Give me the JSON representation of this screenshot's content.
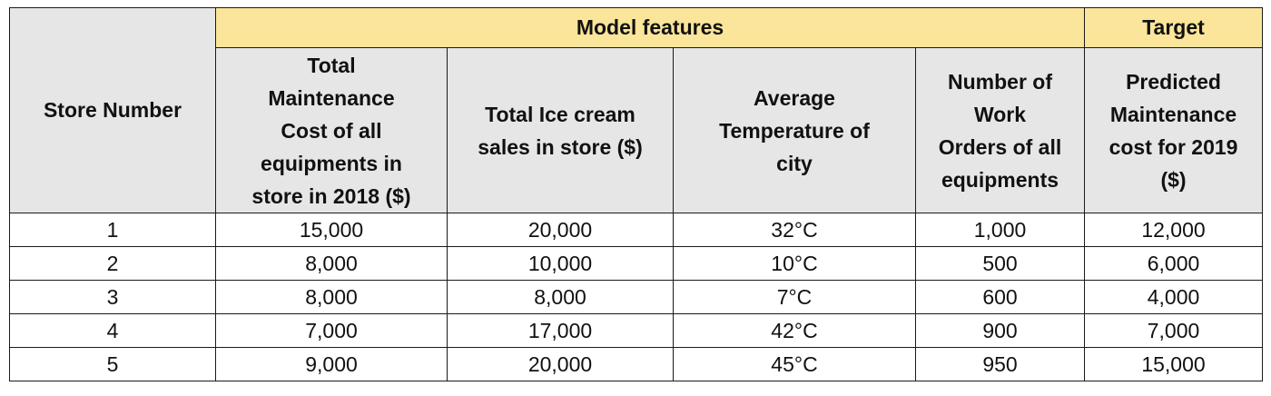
{
  "table": {
    "group_headers": {
      "features": "Model features",
      "target": "Target"
    },
    "store_header": "Store Number",
    "column_headers": [
      [
        "Total",
        "Maintenance",
        "Cost of all",
        "equipments in",
        "store in 2018 ($)"
      ],
      [
        "Total Ice cream",
        "sales in store ($)"
      ],
      [
        "Average",
        "Temperature of",
        "city"
      ],
      [
        "Number of",
        "Work",
        "Orders of all",
        "equipments"
      ],
      [
        "Predicted",
        "Maintenance",
        "cost for 2019",
        "($)"
      ]
    ],
    "rows": [
      [
        "1",
        "15,000",
        "20,000",
        "32°C",
        "1,000",
        "12,000"
      ],
      [
        "2",
        "8,000",
        "10,000",
        "10°C",
        "500",
        "6,000"
      ],
      [
        "3",
        "8,000",
        "8,000",
        "7°C",
        "600",
        "4,000"
      ],
      [
        "4",
        "7,000",
        "17,000",
        "42°C",
        "900",
        "7,000"
      ],
      [
        "5",
        "9,000",
        "20,000",
        "45°C",
        "950",
        "15,000"
      ]
    ]
  },
  "colors": {
    "header_yellow": "#fbe59a",
    "header_gray": "#e6e6e6",
    "border": "#1a1a1a"
  }
}
